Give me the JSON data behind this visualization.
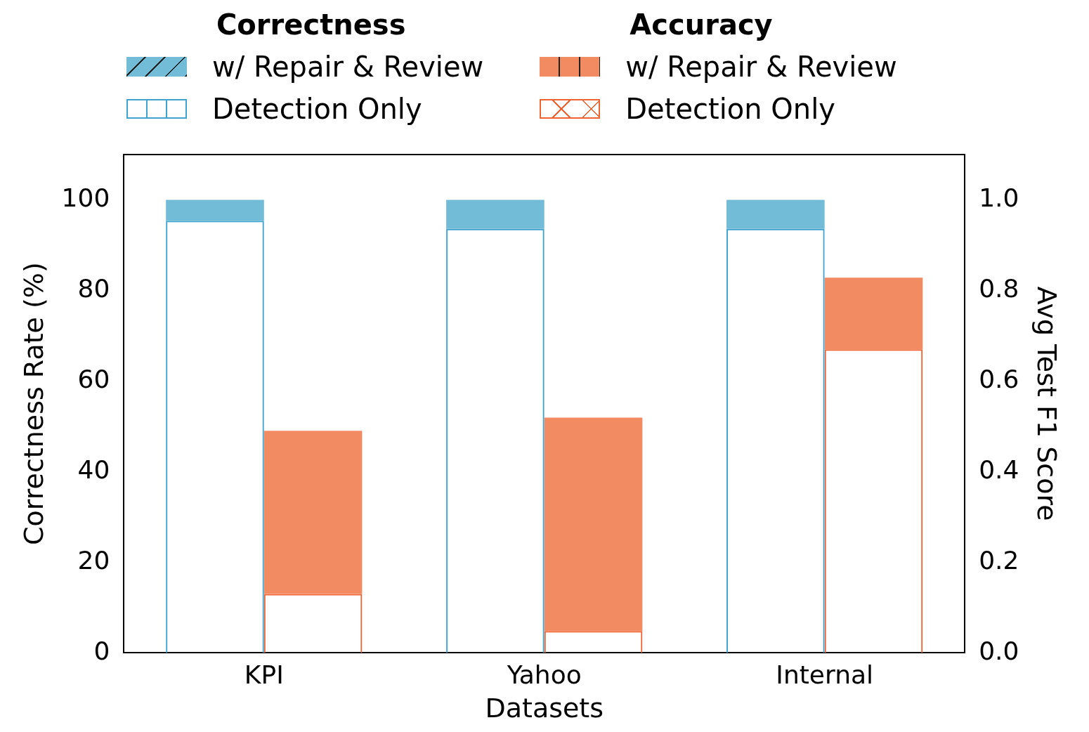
{
  "chart_data": {
    "type": "bar",
    "stacked": true,
    "categories": [
      "KPI",
      "Yahoo",
      "Internal"
    ],
    "xlabel": "Datasets",
    "ylabel": "Correctness Rate (%)",
    "y2label": "Avg Test F1 Score",
    "legend_title": [
      "Correctness",
      "Accuracy"
    ],
    "legend": "top",
    "ylim": [
      0,
      110
    ],
    "yticks": [
      0,
      20,
      40,
      60,
      80,
      100
    ],
    "y2lim": [
      0,
      1.1
    ],
    "y2ticks": [
      {
        "value": 0,
        "label": "0.0"
      },
      {
        "value": 0.2,
        "label": "0.2"
      },
      {
        "value": 0.4,
        "label": "0.4"
      },
      {
        "value": 0.6,
        "label": "0.6"
      },
      {
        "value": 0.8,
        "label": "0.8"
      },
      {
        "value": 1,
        "label": "1.0"
      }
    ],
    "series": [
      {
        "name": "Detection Only",
        "color": "#3fa3cf",
        "axis": "y",
        "values": [
          95.4,
          93.6,
          93.6
        ]
      },
      {
        "name": "w/ Repair & Review",
        "color": "#73bcd8",
        "axis": "y",
        "values": [
          4.6,
          6.4,
          6.4
        ]
      },
      {
        "name": "Detection Only",
        "color": "#f0622f",
        "axis": "y2",
        "values": [
          0.13,
          0.048,
          0.67
        ]
      },
      {
        "name": "w/ Repair & Review",
        "color": "#f28a62",
        "axis": "y2",
        "values": [
          0.36,
          0.471,
          0.158
        ]
      }
    ]
  }
}
